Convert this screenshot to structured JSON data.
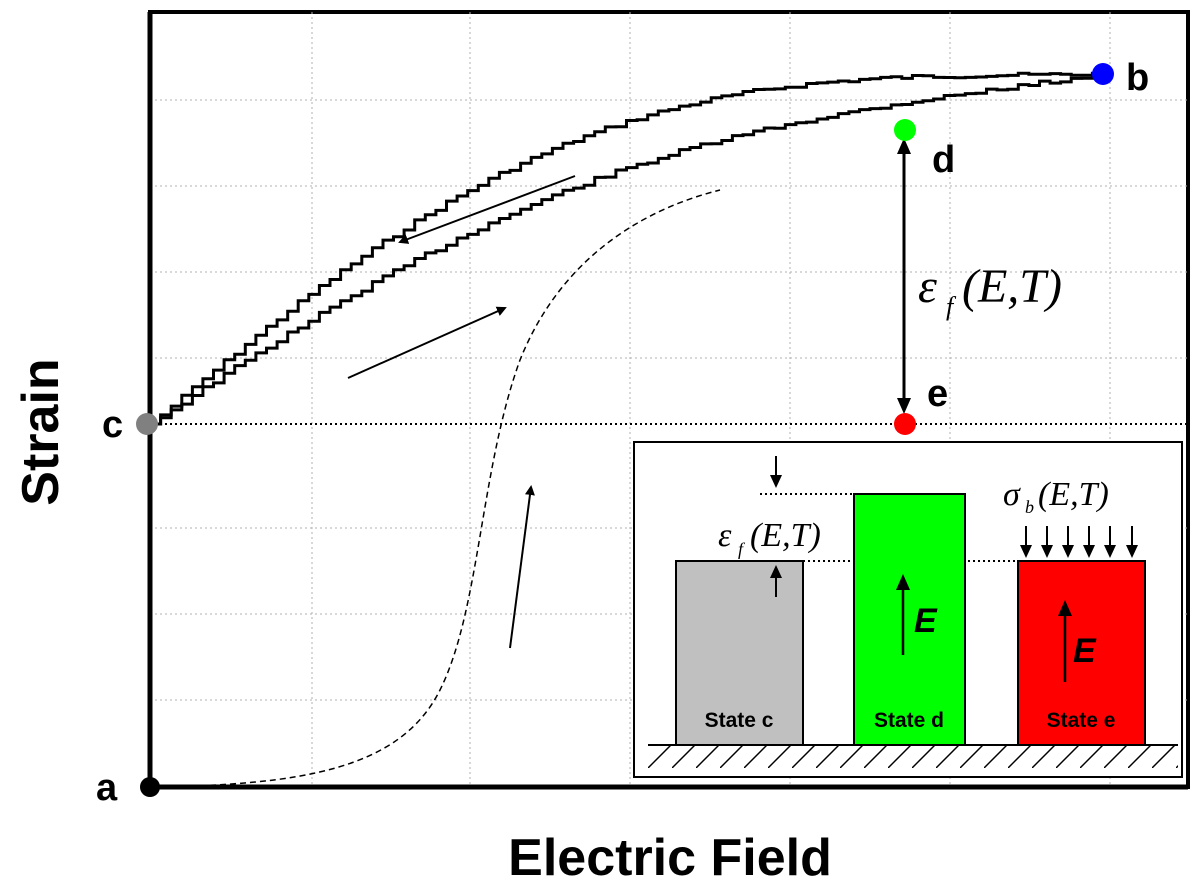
{
  "axes": {
    "xlabel": "Electric Field",
    "ylabel": "Strain"
  },
  "points": {
    "a": {
      "label": "a",
      "color": "#000000"
    },
    "b": {
      "label": "b",
      "color": "#0000ff"
    },
    "c": {
      "label": "c",
      "color": "#808080"
    },
    "d": {
      "label": "d",
      "color": "#00ff00"
    },
    "e": {
      "label": "e",
      "color": "#ff0000"
    }
  },
  "annotation": {
    "strain_symbol": "ε",
    "strain_sub": "f",
    "args": "(E,T)"
  },
  "inset": {
    "blocks": [
      {
        "label": "State c",
        "color": "#c0c0c0",
        "field_label": ""
      },
      {
        "label": "State d",
        "color": "#00ff00",
        "field_label": "E"
      },
      {
        "label": "State e",
        "color": "#ff0000",
        "field_label": "E"
      }
    ],
    "strain_symbol": "ε",
    "strain_sub": "f",
    "stress_symbol": "σ",
    "stress_sub": "b",
    "args": "(E,T)"
  }
}
